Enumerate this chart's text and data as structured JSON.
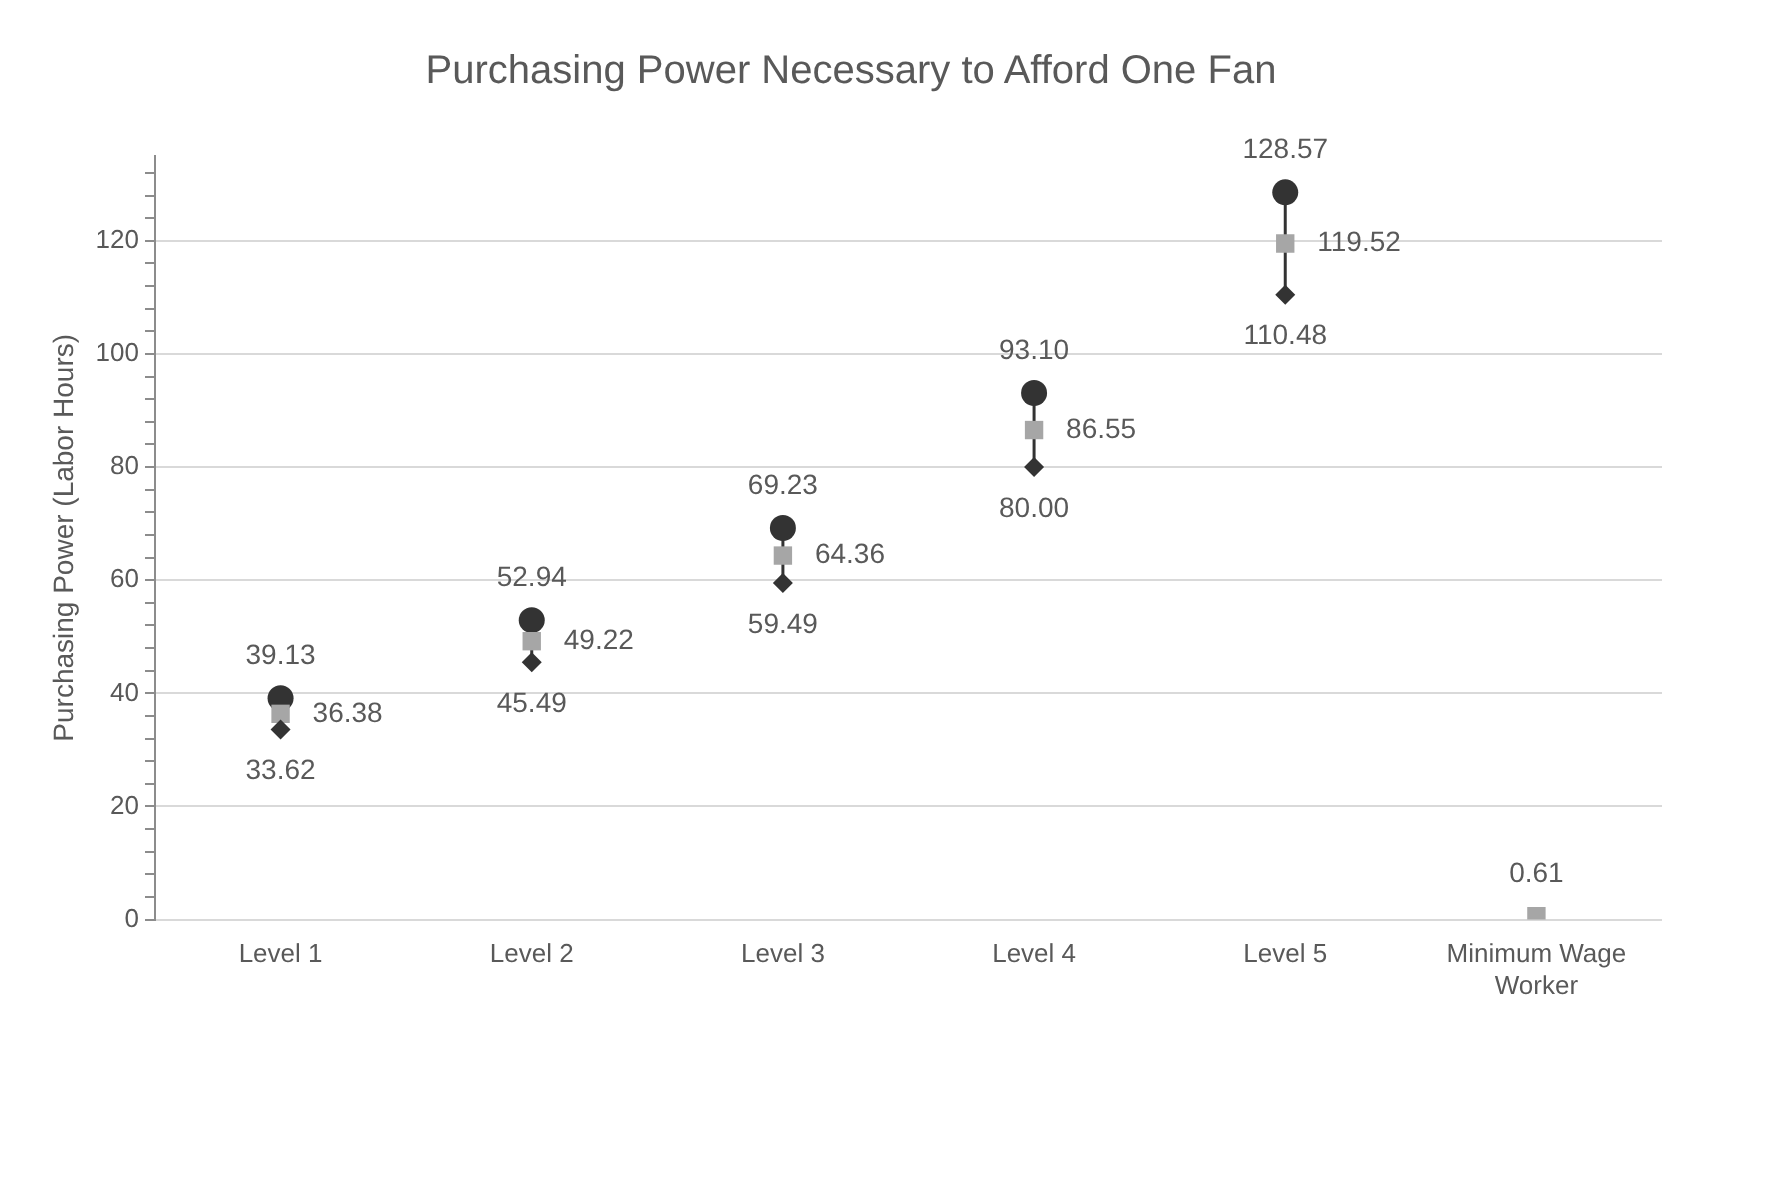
{
  "chart_data": {
    "type": "scatter",
    "title": "Purchasing Power Necessary to Afford One Fan",
    "ylabel": "Purchasing Power (Labor Hours)",
    "categories": [
      "Level 1",
      "Level 2",
      "Level 3",
      "Level 4",
      "Level 5",
      "Minimum Wage Worker"
    ],
    "series": [
      {
        "color": "#333333",
        "marker": "circle",
        "values": [
          39.13,
          52.94,
          69.23,
          93.1,
          128.57,
          null
        ],
        "value_labels": [
          "39.13",
          "52.94",
          "69.23",
          "93.10",
          "128.57",
          null
        ]
      },
      {
        "color": "#a6a6a6",
        "marker": "square",
        "values": [
          36.38,
          49.22,
          64.36,
          86.55,
          119.52,
          0.61
        ],
        "value_labels": [
          "36.38",
          "49.22",
          "64.36",
          "86.55",
          "119.52",
          "0.61"
        ]
      },
      {
        "color": "#333333",
        "marker": "diamond",
        "values": [
          33.62,
          45.49,
          59.49,
          80.0,
          110.48,
          null
        ],
        "value_labels": [
          "33.62",
          "45.49",
          "59.49",
          "80.00",
          "110.48",
          null
        ]
      }
    ],
    "ylim": [
      0,
      135
    ],
    "yticks": [
      0,
      {
        "value": 4,
        "label": null
      },
      {
        "value": 8,
        "label": null
      },
      {
        "value": 12,
        "label": null
      },
      {
        "value": 16,
        "label": null
      },
      20,
      {
        "value": 24,
        "label": null
      },
      {
        "value": 28,
        "label": null
      },
      {
        "value": 32,
        "label": null
      },
      {
        "value": 36,
        "label": null
      },
      40,
      {
        "value": 44,
        "label": null
      },
      {
        "value": 48,
        "label": null
      },
      {
        "value": 52,
        "label": null
      },
      {
        "value": 56,
        "label": null
      },
      60,
      {
        "value": 64,
        "label": null
      },
      {
        "value": 68,
        "label": null
      },
      {
        "value": 72,
        "label": null
      },
      {
        "value": 76,
        "label": null
      },
      80,
      {
        "value": 84,
        "label": null
      },
      {
        "value": 88,
        "label": null
      },
      {
        "value": 92,
        "label": null
      },
      {
        "value": 96,
        "label": null
      },
      100,
      {
        "value": 104,
        "label": null
      },
      {
        "value": 108,
        "label": null
      },
      {
        "value": 112,
        "label": null
      },
      {
        "value": 116,
        "label": null
      },
      120,
      {
        "value": 124,
        "label": null
      },
      {
        "value": 128,
        "label": null
      },
      {
        "value": 132,
        "label": null
      }
    ],
    "grid": "y",
    "legend": false
  }
}
